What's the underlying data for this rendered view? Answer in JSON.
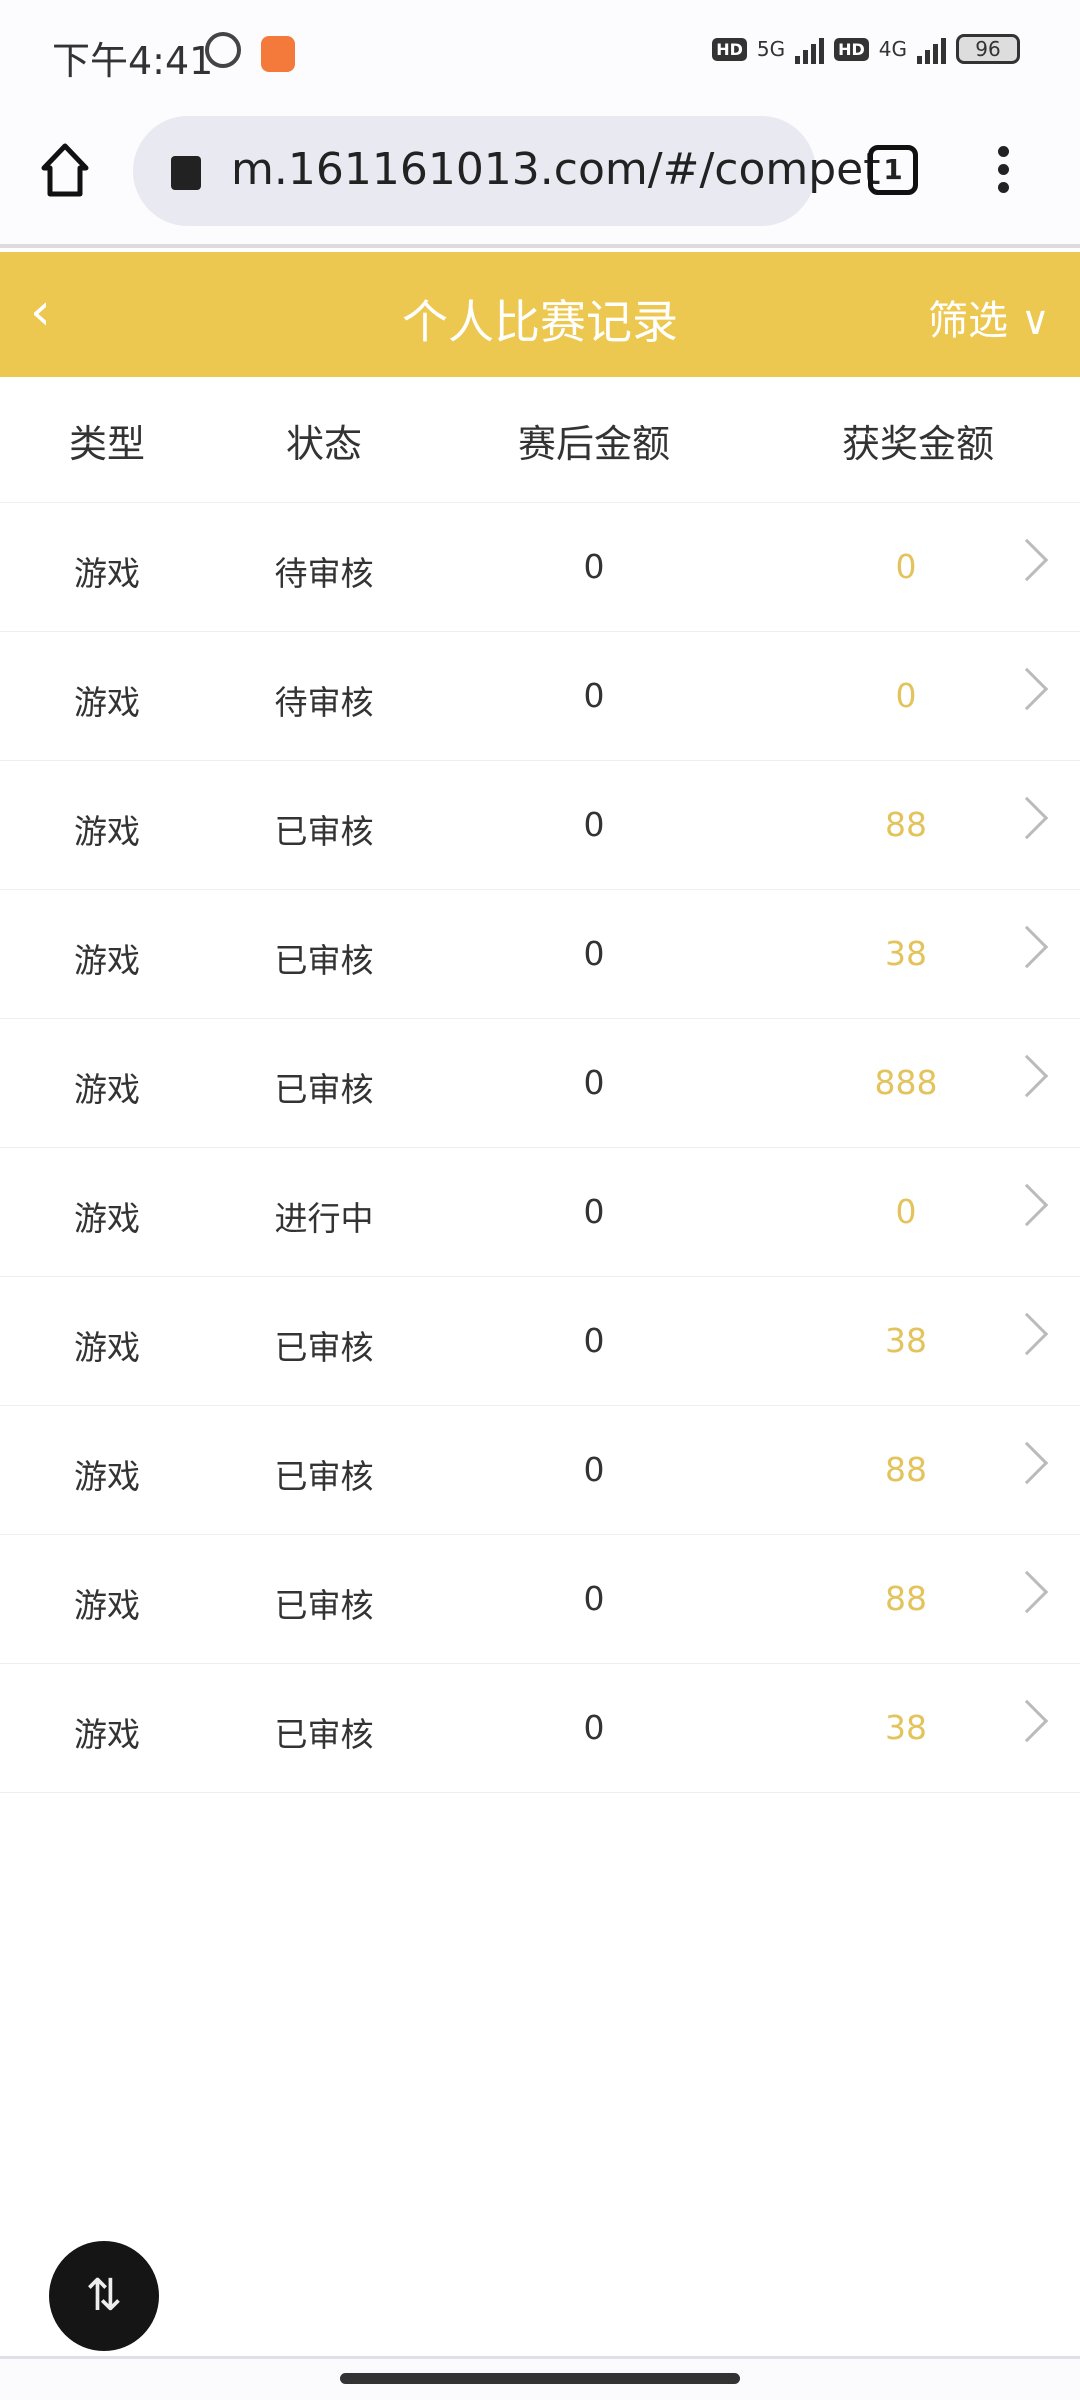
{
  "status_bar": {
    "time": "下午4:41",
    "network1": "5G",
    "network2": "4G",
    "hd": "HD",
    "battery": "96"
  },
  "browser": {
    "url": "m.161161013.com/#/compet",
    "tab_count": "1"
  },
  "header": {
    "title": "个人比赛记录",
    "filter_label": "筛选",
    "back_icon": "chevron-left-icon",
    "filter_icon": "chevron-down-icon"
  },
  "columns": [
    "类型",
    "状态",
    "赛后金额",
    "获奖金额"
  ],
  "rows": [
    {
      "type": "游戏",
      "status": "待审核",
      "after": "0",
      "prize": "0"
    },
    {
      "type": "游戏",
      "status": "待审核",
      "after": "0",
      "prize": "0"
    },
    {
      "type": "游戏",
      "status": "已审核",
      "after": "0",
      "prize": "88"
    },
    {
      "type": "游戏",
      "status": "已审核",
      "after": "0",
      "prize": "38"
    },
    {
      "type": "游戏",
      "status": "已审核",
      "after": "0",
      "prize": "888"
    },
    {
      "type": "游戏",
      "status": "进行中",
      "after": "0",
      "prize": "0"
    },
    {
      "type": "游戏",
      "status": "已审核",
      "after": "0",
      "prize": "38"
    },
    {
      "type": "游戏",
      "status": "已审核",
      "after": "0",
      "prize": "88"
    },
    {
      "type": "游戏",
      "status": "已审核",
      "after": "0",
      "prize": "88"
    },
    {
      "type": "游戏",
      "status": "已审核",
      "after": "0",
      "prize": "38"
    }
  ],
  "colors": {
    "header": "#ecc851",
    "prize": "#e3c35c"
  },
  "fab_icon": "rotate-screen-icon"
}
